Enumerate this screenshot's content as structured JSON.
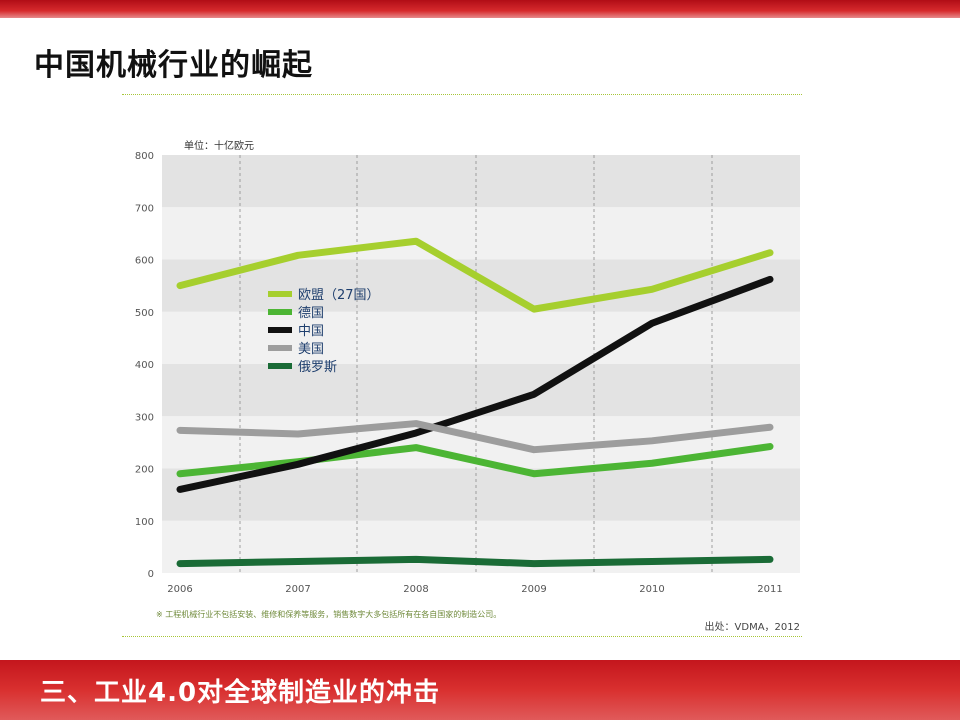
{
  "slide": {
    "title": "中国机械行业的崛起",
    "bottom_title": "三、工业4.0对全球制造业的冲击"
  },
  "colors": {
    "top_bar": "#c4161d",
    "bottom_bar": "#d9302f",
    "rule": "#a7c63a"
  },
  "chart_data": {
    "type": "line",
    "unit_label": "单位：十亿欧元",
    "x": [
      "2006",
      "2007",
      "2008",
      "2009",
      "2010",
      "2011"
    ],
    "ylim": [
      0,
      800
    ],
    "yticks": [
      "0",
      "100",
      "200",
      "300",
      "400",
      "500",
      "600",
      "700",
      "800"
    ],
    "grid": "vertical dashed lines, alternating horizontal bands",
    "legend_position": "upper-left inside plot",
    "series": [
      {
        "name": "欧盟（27国）",
        "color": "#a6cf2e",
        "values": [
          550,
          608,
          635,
          505,
          543,
          613
        ]
      },
      {
        "name": "德国",
        "color": "#4cb534",
        "values": [
          190,
          213,
          240,
          190,
          210,
          242
        ]
      },
      {
        "name": "中国",
        "color": "#111111",
        "values": [
          160,
          208,
          268,
          342,
          478,
          562
        ]
      },
      {
        "name": "美国",
        "color": "#9d9d9d",
        "values": [
          273,
          266,
          286,
          236,
          253,
          279
        ]
      },
      {
        "name": "俄罗斯",
        "color": "#1a6b36",
        "values": [
          18,
          22,
          26,
          18,
          22,
          26
        ]
      }
    ],
    "footnote": "※ 工程机械行业不包括安装、维修和保养等服务，销售数字大多包括所有在各自国家的制造公司。",
    "source": "出处：VDMA，2012"
  }
}
